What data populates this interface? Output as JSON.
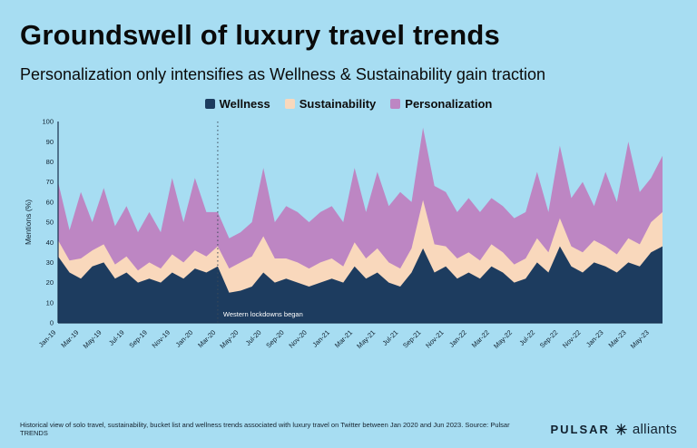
{
  "page": {
    "title": "Groundswell of luxury travel trends",
    "subtitle": "Personalization only intensifies as Wellness & Sustainability gain traction",
    "footnote": "Historical view of solo travel, sustainability, bucket list and wellness trends associated with luxury travel on Twitter between Jan 2020 and Jun 2023. Source: Pulsar TRENDS",
    "brand": {
      "pulsar": "PULSAR",
      "alliants": "alliants"
    },
    "background_color": "#a7ddf2"
  },
  "legend": [
    {
      "label": "Wellness",
      "color": "#1d3c5f"
    },
    {
      "label": "Sustainability",
      "color": "#f9d8bc"
    },
    {
      "label": "Personalization",
      "color": "#bd86c3"
    }
  ],
  "chart_data": {
    "type": "area",
    "stacked": true,
    "title": "",
    "xlabel": "",
    "ylabel": "Mentions (%)",
    "ylim": [
      0,
      100
    ],
    "yticks": [
      0,
      10,
      20,
      30,
      40,
      50,
      60,
      70,
      80,
      90,
      100
    ],
    "x_tick_every": 2,
    "x": [
      "Jan-19",
      "Feb-19",
      "Mar-19",
      "Apr-19",
      "May-19",
      "Jun-19",
      "Jul-19",
      "Aug-19",
      "Sep-19",
      "Oct-19",
      "Nov-19",
      "Dec-19",
      "Jan-20",
      "Feb-20",
      "Mar-20",
      "Apr-20",
      "May-20",
      "Jun-20",
      "Jul-20",
      "Aug-20",
      "Sep-20",
      "Oct-20",
      "Nov-20",
      "Dec-20",
      "Jan-21",
      "Feb-21",
      "Mar-21",
      "Apr-21",
      "May-21",
      "Jun-21",
      "Jul-21",
      "Aug-21",
      "Sep-21",
      "Oct-21",
      "Nov-21",
      "Dec-21",
      "Jan-22",
      "Feb-22",
      "Mar-22",
      "Apr-22",
      "May-22",
      "Jun-22",
      "Jul-22",
      "Aug-22",
      "Sep-22",
      "Oct-22",
      "Nov-22",
      "Dec-22",
      "Jan-23",
      "Feb-23",
      "Mar-23",
      "Apr-23",
      "May-23",
      "Jun-23"
    ],
    "series": [
      {
        "name": "Wellness",
        "color": "#1d3c5f",
        "values": [
          33,
          25,
          22,
          28,
          30,
          22,
          25,
          20,
          22,
          20,
          25,
          22,
          27,
          25,
          28,
          15,
          16,
          18,
          25,
          20,
          22,
          20,
          18,
          20,
          22,
          20,
          28,
          22,
          25,
          20,
          18,
          25,
          37,
          25,
          28,
          22,
          25,
          22,
          28,
          25,
          20,
          22,
          30,
          25,
          38,
          28,
          25,
          30,
          28,
          25,
          30,
          28,
          35,
          38
        ]
      },
      {
        "name": "Sustainability",
        "color": "#f9d8bc",
        "values": [
          8,
          6,
          10,
          8,
          9,
          7,
          8,
          6,
          8,
          7,
          9,
          8,
          9,
          8,
          10,
          12,
          14,
          15,
          18,
          12,
          10,
          10,
          9,
          10,
          10,
          8,
          12,
          10,
          12,
          10,
          9,
          12,
          24,
          14,
          10,
          10,
          10,
          9,
          11,
          10,
          9,
          10,
          12,
          10,
          14,
          10,
          10,
          11,
          10,
          9,
          12,
          11,
          15,
          17
        ]
      },
      {
        "name": "Personalization",
        "color": "#bd86c3",
        "values": [
          29,
          15,
          33,
          14,
          28,
          19,
          25,
          19,
          25,
          18,
          38,
          20,
          36,
          22,
          17,
          15,
          15,
          17,
          34,
          18,
          26,
          25,
          23,
          25,
          26,
          22,
          37,
          23,
          38,
          28,
          38,
          23,
          36,
          29,
          27,
          23,
          27,
          24,
          23,
          23,
          23,
          23,
          33,
          20,
          36,
          24,
          35,
          17,
          37,
          26,
          48,
          26,
          22,
          28
        ]
      }
    ],
    "annotation": {
      "label": "Western lockdowns began",
      "x": "Mar-20",
      "line_style": "dotted"
    },
    "axis_color": "#16304d",
    "legend_position": "top"
  }
}
